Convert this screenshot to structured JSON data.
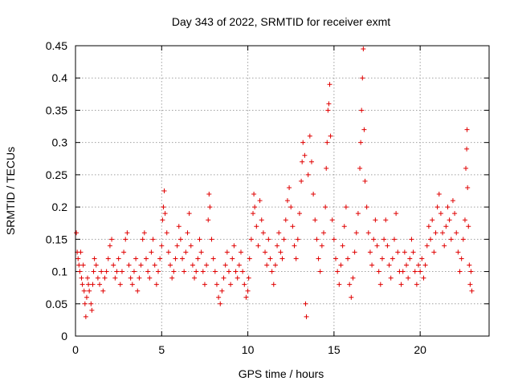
{
  "chart_data": {
    "type": "scatter",
    "title": "Day 343 of 2022, SRMTID for receiver exmt",
    "xlabel": "GPS time / hours",
    "ylabel": "SRMTID / TECUs",
    "xlim": [
      0,
      24
    ],
    "ylim": [
      0,
      0.45
    ],
    "xticks": [
      0,
      5,
      10,
      15,
      20
    ],
    "xtick_labels": [
      "0",
      "5",
      "10",
      "15",
      "20"
    ],
    "yticks": [
      0,
      0.05,
      0.1,
      0.15,
      0.2,
      0.25,
      0.3,
      0.35,
      0.4,
      0.45
    ],
    "ytick_labels": [
      "0",
      "0.05",
      "0.1",
      "0.15",
      "0.2",
      "0.25",
      "0.3",
      "0.35",
      "0.4",
      "0.45"
    ],
    "grid": true,
    "marker": "+",
    "marker_color": "#e00000",
    "series": [
      {
        "name": "SRMTID",
        "points": [
          [
            0.05,
            0.16
          ],
          [
            0.1,
            0.13
          ],
          [
            0.15,
            0.12
          ],
          [
            0.2,
            0.11
          ],
          [
            0.25,
            0.1
          ],
          [
            0.3,
            0.13
          ],
          [
            0.35,
            0.09
          ],
          [
            0.4,
            0.08
          ],
          [
            0.45,
            0.11
          ],
          [
            0.5,
            0.07
          ],
          [
            0.55,
            0.05
          ],
          [
            0.6,
            0.03
          ],
          [
            0.65,
            0.06
          ],
          [
            0.7,
            0.09
          ],
          [
            0.75,
            0.08
          ],
          [
            0.8,
            0.07
          ],
          [
            0.9,
            0.05
          ],
          [
            0.95,
            0.04
          ],
          [
            1.0,
            0.08
          ],
          [
            1.05,
            0.1
          ],
          [
            1.1,
            0.12
          ],
          [
            1.2,
            0.11
          ],
          [
            1.3,
            0.09
          ],
          [
            1.4,
            0.08
          ],
          [
            1.5,
            0.1
          ],
          [
            1.6,
            0.07
          ],
          [
            1.7,
            0.09
          ],
          [
            1.8,
            0.1
          ],
          [
            1.9,
            0.12
          ],
          [
            2.0,
            0.14
          ],
          [
            2.1,
            0.15
          ],
          [
            2.2,
            0.11
          ],
          [
            2.3,
            0.09
          ],
          [
            2.4,
            0.1
          ],
          [
            2.5,
            0.12
          ],
          [
            2.6,
            0.08
          ],
          [
            2.7,
            0.1
          ],
          [
            2.8,
            0.13
          ],
          [
            2.9,
            0.15
          ],
          [
            3.0,
            0.16
          ],
          [
            3.1,
            0.11
          ],
          [
            3.2,
            0.09
          ],
          [
            3.3,
            0.08
          ],
          [
            3.4,
            0.1
          ],
          [
            3.5,
            0.12
          ],
          [
            3.6,
            0.07
          ],
          [
            3.7,
            0.09
          ],
          [
            3.8,
            0.11
          ],
          [
            3.9,
            0.15
          ],
          [
            4.0,
            0.16
          ],
          [
            4.1,
            0.12
          ],
          [
            4.2,
            0.1
          ],
          [
            4.3,
            0.09
          ],
          [
            4.4,
            0.13
          ],
          [
            4.5,
            0.15
          ],
          [
            4.6,
            0.11
          ],
          [
            4.7,
            0.08
          ],
          [
            4.8,
            0.1
          ],
          [
            4.9,
            0.12
          ],
          [
            5.0,
            0.14
          ],
          [
            5.05,
            0.18
          ],
          [
            5.1,
            0.2
          ],
          [
            5.15,
            0.225
          ],
          [
            5.2,
            0.19
          ],
          [
            5.3,
            0.16
          ],
          [
            5.4,
            0.13
          ],
          [
            5.5,
            0.11
          ],
          [
            5.6,
            0.09
          ],
          [
            5.7,
            0.1
          ],
          [
            5.8,
            0.12
          ],
          [
            5.9,
            0.14
          ],
          [
            6.0,
            0.17
          ],
          [
            6.1,
            0.15
          ],
          [
            6.2,
            0.12
          ],
          [
            6.3,
            0.1
          ],
          [
            6.4,
            0.13
          ],
          [
            6.5,
            0.16
          ],
          [
            6.6,
            0.19
          ],
          [
            6.7,
            0.14
          ],
          [
            6.8,
            0.11
          ],
          [
            6.9,
            0.09
          ],
          [
            7.0,
            0.1
          ],
          [
            7.1,
            0.12
          ],
          [
            7.2,
            0.15
          ],
          [
            7.3,
            0.13
          ],
          [
            7.4,
            0.1
          ],
          [
            7.5,
            0.08
          ],
          [
            7.6,
            0.11
          ],
          [
            7.7,
            0.18
          ],
          [
            7.75,
            0.22
          ],
          [
            7.8,
            0.2
          ],
          [
            7.9,
            0.15
          ],
          [
            8.0,
            0.12
          ],
          [
            8.1,
            0.1
          ],
          [
            8.2,
            0.08
          ],
          [
            8.3,
            0.06
          ],
          [
            8.4,
            0.05
          ],
          [
            8.5,
            0.07
          ],
          [
            8.6,
            0.09
          ],
          [
            8.7,
            0.11
          ],
          [
            8.8,
            0.13
          ],
          [
            8.9,
            0.1
          ],
          [
            9.0,
            0.08
          ],
          [
            9.1,
            0.12
          ],
          [
            9.2,
            0.14
          ],
          [
            9.3,
            0.1
          ],
          [
            9.4,
            0.09
          ],
          [
            9.5,
            0.11
          ],
          [
            9.6,
            0.13
          ],
          [
            9.7,
            0.1
          ],
          [
            9.8,
            0.08
          ],
          [
            9.9,
            0.06
          ],
          [
            10.0,
            0.07
          ],
          [
            10.05,
            0.09
          ],
          [
            10.1,
            0.12
          ],
          [
            10.2,
            0.15
          ],
          [
            10.3,
            0.19
          ],
          [
            10.35,
            0.22
          ],
          [
            10.4,
            0.2
          ],
          [
            10.5,
            0.17
          ],
          [
            10.6,
            0.14
          ],
          [
            10.7,
            0.21
          ],
          [
            10.8,
            0.18
          ],
          [
            10.9,
            0.16
          ],
          [
            11.0,
            0.13
          ],
          [
            11.1,
            0.11
          ],
          [
            11.2,
            0.15
          ],
          [
            11.3,
            0.12
          ],
          [
            11.4,
            0.1
          ],
          [
            11.5,
            0.08
          ],
          [
            11.6,
            0.11
          ],
          [
            11.7,
            0.14
          ],
          [
            11.8,
            0.16
          ],
          [
            11.9,
            0.13
          ],
          [
            12.0,
            0.12
          ],
          [
            12.1,
            0.15
          ],
          [
            12.2,
            0.18
          ],
          [
            12.3,
            0.21
          ],
          [
            12.4,
            0.23
          ],
          [
            12.5,
            0.2
          ],
          [
            12.6,
            0.17
          ],
          [
            12.7,
            0.14
          ],
          [
            12.8,
            0.12
          ],
          [
            12.9,
            0.15
          ],
          [
            13.0,
            0.19
          ],
          [
            13.1,
            0.24
          ],
          [
            13.15,
            0.27
          ],
          [
            13.2,
            0.3
          ],
          [
            13.3,
            0.28
          ],
          [
            13.35,
            0.05
          ],
          [
            13.4,
            0.03
          ],
          [
            13.5,
            0.25
          ],
          [
            13.6,
            0.31
          ],
          [
            13.7,
            0.27
          ],
          [
            13.8,
            0.22
          ],
          [
            13.9,
            0.18
          ],
          [
            14.0,
            0.15
          ],
          [
            14.1,
            0.12
          ],
          [
            14.2,
            0.1
          ],
          [
            14.3,
            0.14
          ],
          [
            14.4,
            0.16
          ],
          [
            14.5,
            0.2
          ],
          [
            14.55,
            0.26
          ],
          [
            14.6,
            0.3
          ],
          [
            14.65,
            0.35
          ],
          [
            14.7,
            0.36
          ],
          [
            14.75,
            0.39
          ],
          [
            14.8,
            0.31
          ],
          [
            14.9,
            0.18
          ],
          [
            15.0,
            0.15
          ],
          [
            15.1,
            0.12
          ],
          [
            15.2,
            0.1
          ],
          [
            15.3,
            0.08
          ],
          [
            15.4,
            0.11
          ],
          [
            15.5,
            0.14
          ],
          [
            15.6,
            0.17
          ],
          [
            15.7,
            0.2
          ],
          [
            15.8,
            0.12
          ],
          [
            15.9,
            0.08
          ],
          [
            16.0,
            0.06
          ],
          [
            16.1,
            0.09
          ],
          [
            16.2,
            0.13
          ],
          [
            16.3,
            0.16
          ],
          [
            16.4,
            0.19
          ],
          [
            16.5,
            0.26
          ],
          [
            16.55,
            0.3
          ],
          [
            16.6,
            0.35
          ],
          [
            16.65,
            0.4
          ],
          [
            16.7,
            0.445
          ],
          [
            16.75,
            0.32
          ],
          [
            16.8,
            0.24
          ],
          [
            16.9,
            0.2
          ],
          [
            17.0,
            0.16
          ],
          [
            17.1,
            0.13
          ],
          [
            17.2,
            0.11
          ],
          [
            17.3,
            0.15
          ],
          [
            17.4,
            0.18
          ],
          [
            17.5,
            0.14
          ],
          [
            17.6,
            0.1
          ],
          [
            17.7,
            0.08
          ],
          [
            17.8,
            0.12
          ],
          [
            17.9,
            0.15
          ],
          [
            18.0,
            0.18
          ],
          [
            18.1,
            0.14
          ],
          [
            18.2,
            0.11
          ],
          [
            18.3,
            0.09
          ],
          [
            18.4,
            0.12
          ],
          [
            18.5,
            0.15
          ],
          [
            18.6,
            0.19
          ],
          [
            18.7,
            0.13
          ],
          [
            18.8,
            0.1
          ],
          [
            18.9,
            0.08
          ],
          [
            19.0,
            0.1
          ],
          [
            19.1,
            0.13
          ],
          [
            19.2,
            0.11
          ],
          [
            19.3,
            0.09
          ],
          [
            19.4,
            0.12
          ],
          [
            19.5,
            0.15
          ],
          [
            19.6,
            0.13
          ],
          [
            19.7,
            0.1
          ],
          [
            19.8,
            0.08
          ],
          [
            19.9,
            0.11
          ],
          [
            20.0,
            0.1
          ],
          [
            20.1,
            0.12
          ],
          [
            20.2,
            0.09
          ],
          [
            20.3,
            0.11
          ],
          [
            20.4,
            0.14
          ],
          [
            20.5,
            0.17
          ],
          [
            20.6,
            0.15
          ],
          [
            20.7,
            0.18
          ],
          [
            20.8,
            0.13
          ],
          [
            20.9,
            0.16
          ],
          [
            21.0,
            0.2
          ],
          [
            21.1,
            0.22
          ],
          [
            21.2,
            0.19
          ],
          [
            21.3,
            0.16
          ],
          [
            21.4,
            0.14
          ],
          [
            21.5,
            0.17
          ],
          [
            21.6,
            0.2
          ],
          [
            21.7,
            0.18
          ],
          [
            21.8,
            0.15
          ],
          [
            21.9,
            0.21
          ],
          [
            22.0,
            0.19
          ],
          [
            22.1,
            0.16
          ],
          [
            22.2,
            0.13
          ],
          [
            22.3,
            0.1
          ],
          [
            22.4,
            0.12
          ],
          [
            22.5,
            0.15
          ],
          [
            22.6,
            0.18
          ],
          [
            22.65,
            0.26
          ],
          [
            22.7,
            0.29
          ],
          [
            22.72,
            0.32
          ],
          [
            22.75,
            0.23
          ],
          [
            22.8,
            0.17
          ],
          [
            22.85,
            0.11
          ],
          [
            22.9,
            0.08
          ],
          [
            22.95,
            0.1
          ],
          [
            23.0,
            0.07
          ]
        ]
      }
    ]
  }
}
